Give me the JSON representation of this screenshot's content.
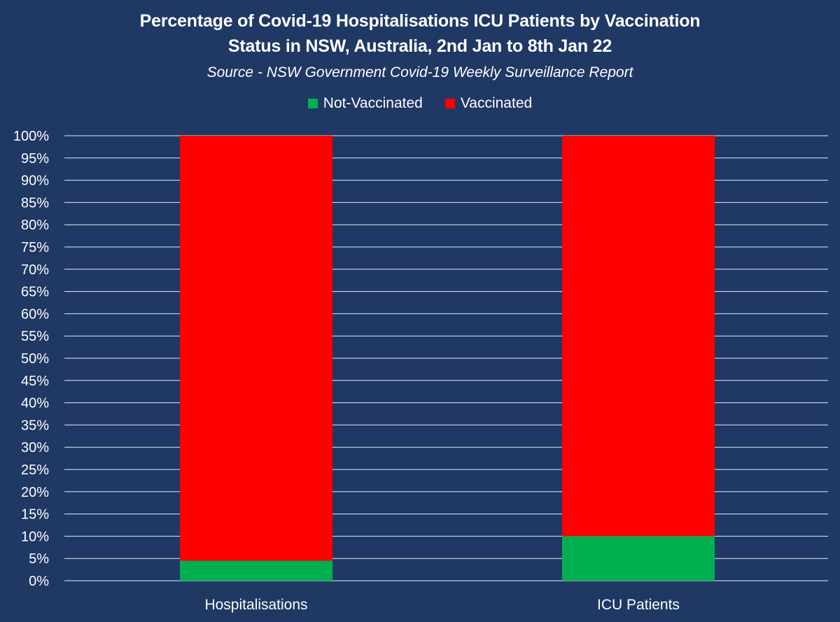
{
  "title_line1": "Percentage of Covid-19  Hospitalisations ICU Patients by Vaccination",
  "title_line2": "Status in NSW, Australia, 2nd Jan to 8th Jan 22",
  "subtitle": "Source - NSW Government Covid-19 Weekly Surveillance Report",
  "colors": {
    "background": "#1f3864",
    "not_vaccinated": "#00b050",
    "vaccinated": "#ff0000",
    "grid": "#ffffff"
  },
  "chart_data": {
    "type": "bar",
    "stacked": true,
    "title": "Percentage of Covid-19  Hospitalisations ICU Patients by Vaccination Status in NSW, Australia, 2nd Jan to 8th Jan 22",
    "subtitle": "Source - NSW Government Covid-19 Weekly Surveillance Report",
    "categories": [
      "Hospitalisations",
      "ICU Patients"
    ],
    "series": [
      {
        "name": "Not-Vaccinated",
        "values": [
          4.5,
          10
        ]
      },
      {
        "name": "Vaccinated",
        "values": [
          95.5,
          90
        ]
      }
    ],
    "ylim": [
      0,
      100
    ],
    "y_ticks": [
      "0%",
      "5%",
      "10%",
      "15%",
      "20%",
      "25%",
      "30%",
      "35%",
      "40%",
      "45%",
      "50%",
      "55%",
      "60%",
      "65%",
      "70%",
      "75%",
      "80%",
      "85%",
      "90%",
      "95%",
      "100%"
    ],
    "xlabel": "",
    "ylabel": "",
    "grid": true,
    "legend": "top"
  }
}
